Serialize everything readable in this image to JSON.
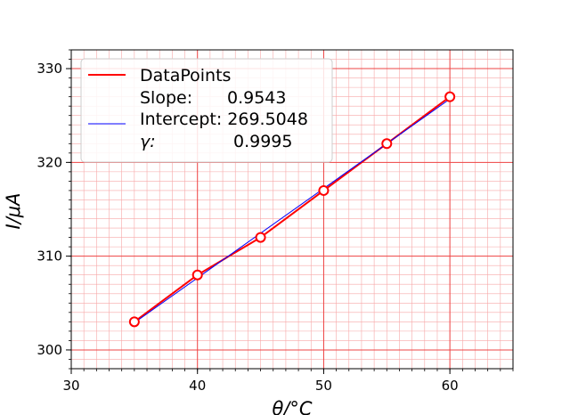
{
  "chart_data": {
    "type": "line",
    "xlabel": "θ/°C",
    "ylabel": "I/μA",
    "xlim": [
      30,
      65
    ],
    "ylim": [
      298,
      332
    ],
    "x_major_ticks": [
      30,
      40,
      50,
      60
    ],
    "y_major_ticks": [
      300,
      310,
      320,
      330
    ],
    "x_minor_step": 1,
    "y_minor_step": 1,
    "grid": true,
    "legend_position": "top-left",
    "series": [
      {
        "name": "DataPoints",
        "kind": "line-with-markers",
        "color": "#ff0000",
        "marker_fill": "#ffffff",
        "x": [
          35,
          40,
          45,
          50,
          55,
          60
        ],
        "y": [
          303,
          308,
          312,
          317,
          322,
          327
        ]
      },
      {
        "name": "Intercept: 269.5048",
        "kind": "fit-line",
        "color": "#0000ff",
        "slope": 0.9543,
        "intercept": 269.5048,
        "x_range": [
          35,
          60
        ]
      }
    ],
    "legend": {
      "line1": "DataPoints",
      "line2_label": "Slope:",
      "line2_value": "0.9543",
      "line3": "Intercept: 269.5048",
      "line4_label": "γ:",
      "line4_value": "0.9995"
    },
    "colors": {
      "grid_major": "#ee4444",
      "grid_minor": "#f7a8a8",
      "data": "#ff0000",
      "fit": "#0000ff"
    }
  }
}
